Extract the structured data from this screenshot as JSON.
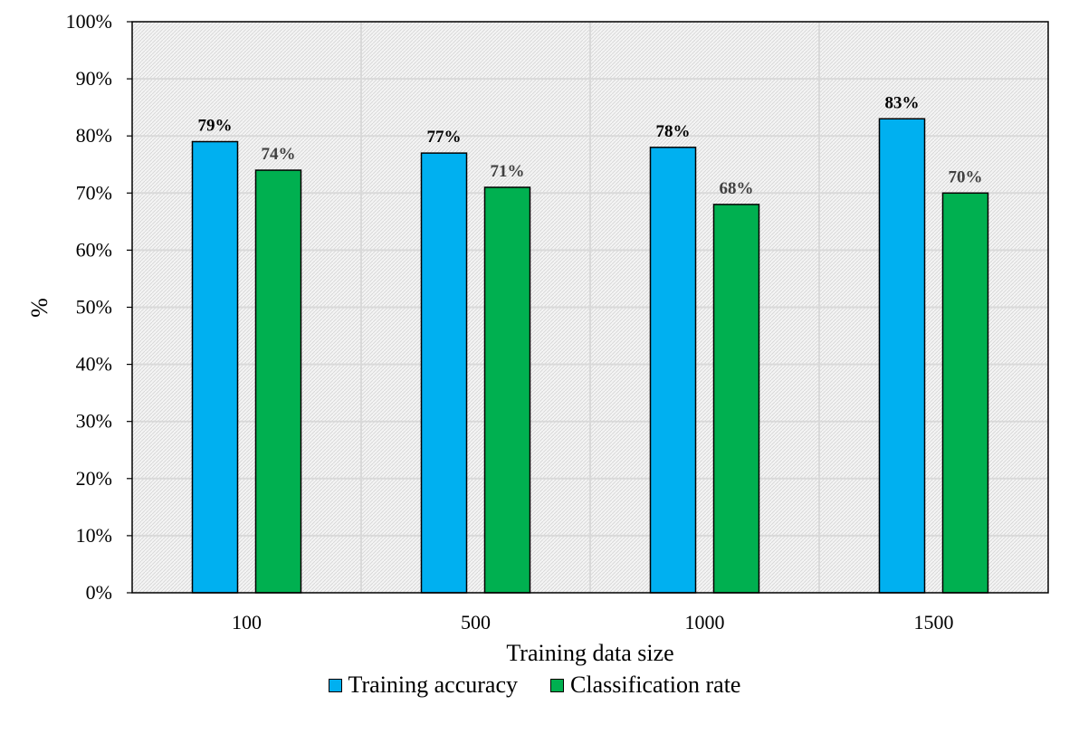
{
  "chart_data": {
    "type": "bar",
    "categories": [
      "100",
      "500",
      "1000",
      "1500"
    ],
    "series": [
      {
        "name": "Training accuracy",
        "values": [
          79,
          77,
          78,
          83
        ],
        "labels": [
          "79%",
          "77%",
          "78%",
          "83%"
        ],
        "color": "#00B0F0",
        "label_color": "#000000"
      },
      {
        "name": "Classification rate",
        "values": [
          74,
          71,
          68,
          70
        ],
        "labels": [
          "74%",
          "71%",
          "68%",
          "70%"
        ],
        "color": "#00B050",
        "label_color": "#404040"
      }
    ],
    "xlabel": "Training data size",
    "ylabel": "%",
    "ylim": [
      0,
      100
    ],
    "yticks": [
      "0%",
      "10%",
      "20%",
      "30%",
      "40%",
      "50%",
      "60%",
      "70%",
      "80%",
      "90%",
      "100%"
    ],
    "grid": true,
    "legend_position": "bottom"
  }
}
